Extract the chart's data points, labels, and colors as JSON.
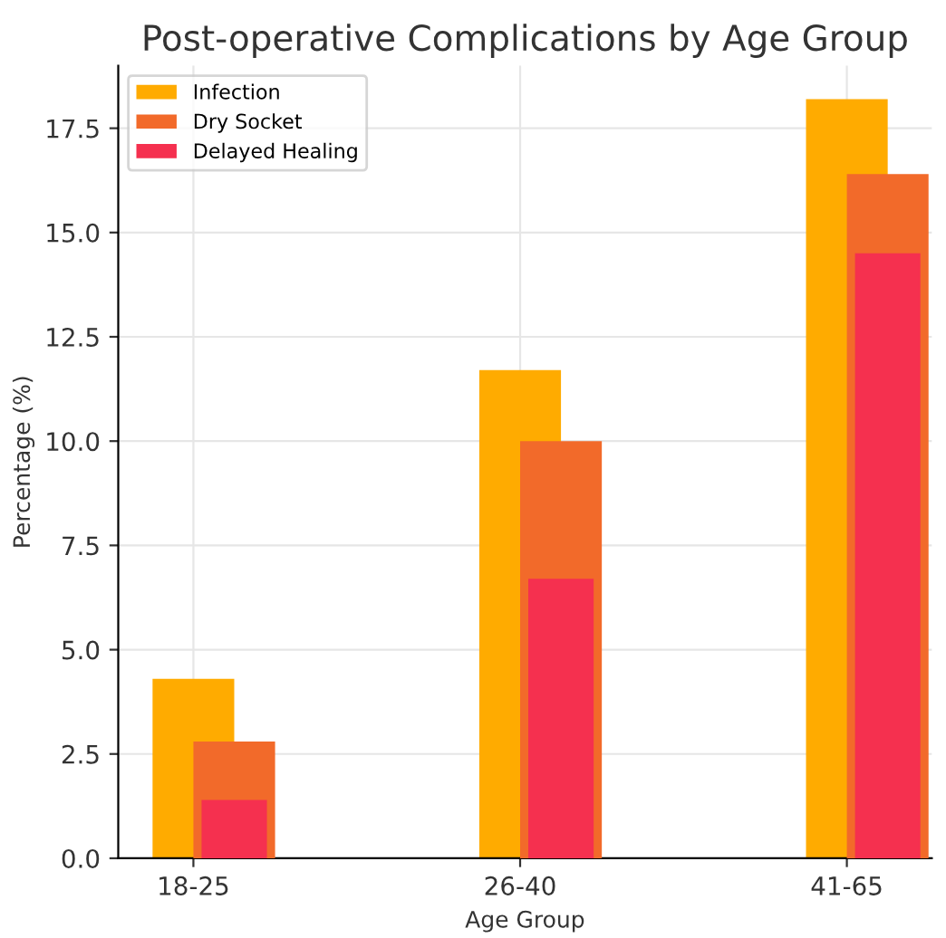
{
  "chart_data": {
    "type": "bar",
    "title": "Post-operative Complications by Age Group",
    "xlabel": "Age Group",
    "ylabel": "Percentage (%)",
    "categories": [
      "18-25",
      "26-40",
      "41-65"
    ],
    "series": [
      {
        "name": "Infection",
        "color": "#ffab00",
        "values": [
          4.3,
          11.7,
          18.2
        ]
      },
      {
        "name": "Dry Socket",
        "color": "#f26a2a",
        "values": [
          2.8,
          10.0,
          16.4
        ]
      },
      {
        "name": "Delayed Healing",
        "color": "#f5304f",
        "values": [
          1.4,
          6.7,
          14.5
        ]
      }
    ],
    "ylim": [
      0,
      19
    ],
    "yticks": [
      {
        "value": 0,
        "label": "0.0"
      },
      {
        "value": 2.5,
        "label": "2.5"
      },
      {
        "value": 5,
        "label": "5.0"
      },
      {
        "value": 7.5,
        "label": "7.5"
      },
      {
        "value": 10,
        "label": "10.0"
      },
      {
        "value": 12.5,
        "label": "12.5"
      },
      {
        "value": 15,
        "label": "15.0"
      },
      {
        "value": 17.5,
        "label": "17.5"
      }
    ],
    "grid": true,
    "legend": "top left"
  }
}
